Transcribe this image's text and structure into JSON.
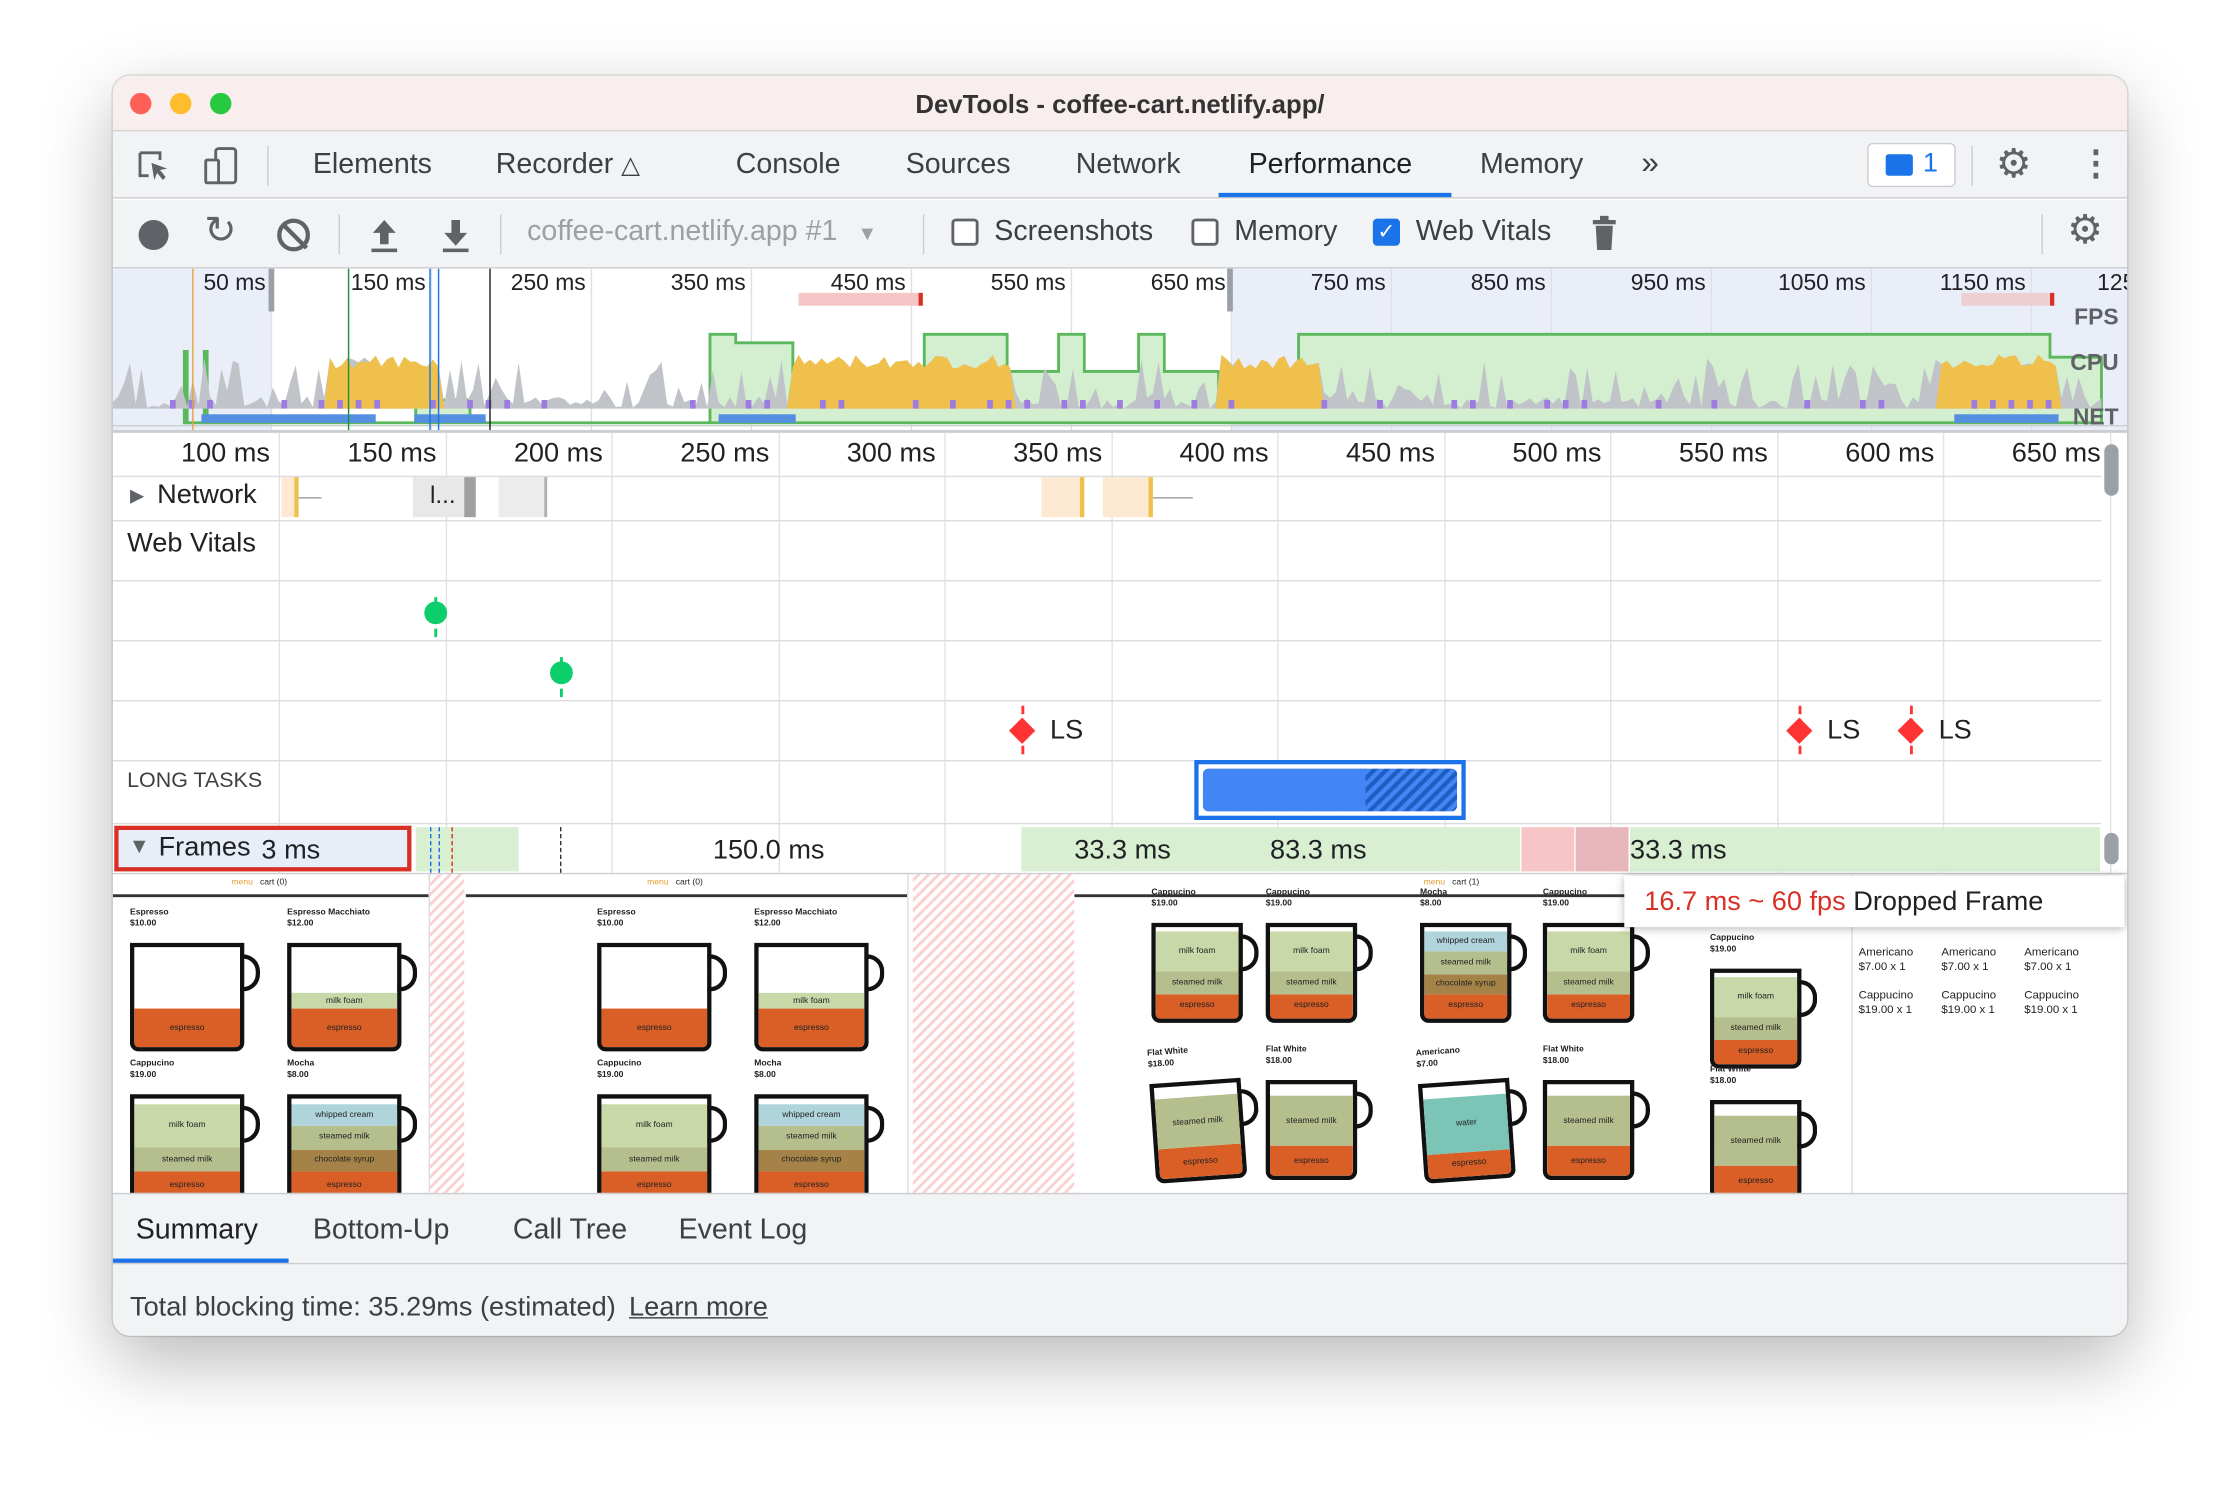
{
  "window": {
    "title": "DevTools - coffee-cart.netlify.app/"
  },
  "tabs": {
    "items": [
      "Elements",
      "Recorder",
      "Console",
      "Sources",
      "Network",
      "Performance",
      "Memory"
    ],
    "active": "Performance",
    "more": "»",
    "issues_count": "1"
  },
  "toolbar": {
    "profile_select": "coffee-cart.netlify.app #1",
    "screenshots_label": "Screenshots",
    "screenshots_checked": false,
    "memory_label": "Memory",
    "memory_checked": false,
    "webvitals_label": "Web Vitals",
    "webvitals_checked": true
  },
  "overview": {
    "ticks": [
      "50 ms",
      "150 ms",
      "250 ms",
      "350 ms",
      "450 ms",
      "550 ms",
      "650 ms",
      "750 ms",
      "850 ms",
      "950 ms",
      "1050 ms",
      "1150 ms",
      "125"
    ],
    "lanes": [
      "FPS",
      "CPU",
      "NET"
    ],
    "colors": {
      "fps": "#5cb85c",
      "scripting": "#f0c04d",
      "rendering": "#9c7ce0",
      "painting": "#6fbf6f",
      "other": "#c0c4c9",
      "net": "#5590e0"
    }
  },
  "timeline": {
    "ticks": [
      "100 ms",
      "150 ms",
      "200 ms",
      "250 ms",
      "300 ms",
      "350 ms",
      "400 ms",
      "450 ms",
      "500 ms",
      "550 ms",
      "600 ms",
      "650 ms"
    ],
    "network_label": "Network",
    "network_request_label": "l...",
    "web_vitals_label": "Web Vitals",
    "ls_markers": [
      "LS",
      "LS",
      "LS"
    ],
    "long_tasks_label": "LONG TASKS",
    "frames_label": "Frames",
    "frames_durations": [
      "3 ms",
      "150.0 ms",
      "33.3 ms",
      "83.3 ms",
      "33.3 ms"
    ],
    "tooltip": {
      "timing": "16.7 ms ~ 60 fps",
      "text": "Dropped Frame"
    }
  },
  "screenshots": {
    "nav": {
      "menu": "menu",
      "cart0": "cart (0)",
      "cart1": "cart (1)"
    },
    "cart_items": [
      {
        "name": "Americano",
        "price": "$7.00 x 1"
      },
      {
        "name": "Cappucino",
        "price": "$19.00 x 1"
      }
    ],
    "cups": {
      "espresso": {
        "name": "Espresso",
        "price": "$10.00",
        "layers": [
          [
            "espresso",
            "#d95f26",
            35
          ]
        ]
      },
      "macchiato": {
        "name": "Espresso Macchiato",
        "price": "$12.00",
        "layers": [
          [
            "espresso",
            "#d95f26",
            35
          ],
          [
            "milk foam",
            "#c8d8a8",
            15
          ]
        ]
      },
      "cappucino": {
        "name": "Cappucino",
        "price": "$19.00",
        "layers": [
          [
            "espresso",
            "#d95f26",
            25
          ],
          [
            "steamed milk",
            "#b5bf8e",
            22
          ],
          [
            "milk foam",
            "#c8d8a8",
            40
          ]
        ]
      },
      "mocha": {
        "name": "Mocha",
        "price": "$8.00",
        "layers": [
          [
            "espresso",
            "#d95f26",
            25
          ],
          [
            "chocolate syrup",
            "#a58348",
            20
          ],
          [
            "steamed milk",
            "#b5bf8e",
            22
          ],
          [
            "whipped cream",
            "#b0d4dc",
            20
          ]
        ]
      },
      "flatwhite": {
        "name": "Flat White",
        "price": "$18.00",
        "layers": [
          [
            "espresso",
            "#d95f26",
            30
          ],
          [
            "steamed milk",
            "#b5bf8e",
            50
          ]
        ]
      },
      "americano": {
        "name": "Americano",
        "price": "$7.00",
        "layers": [
          [
            "espresso",
            "#d95f26",
            25
          ],
          [
            "water",
            "#7cc4b6",
            55
          ]
        ]
      }
    }
  },
  "bottom": {
    "tabs": [
      "Summary",
      "Bottom-Up",
      "Call Tree",
      "Event Log"
    ],
    "active": "Summary",
    "summary_text": "Total blocking time: 35.29ms (estimated)",
    "learn_more": "Learn more"
  }
}
